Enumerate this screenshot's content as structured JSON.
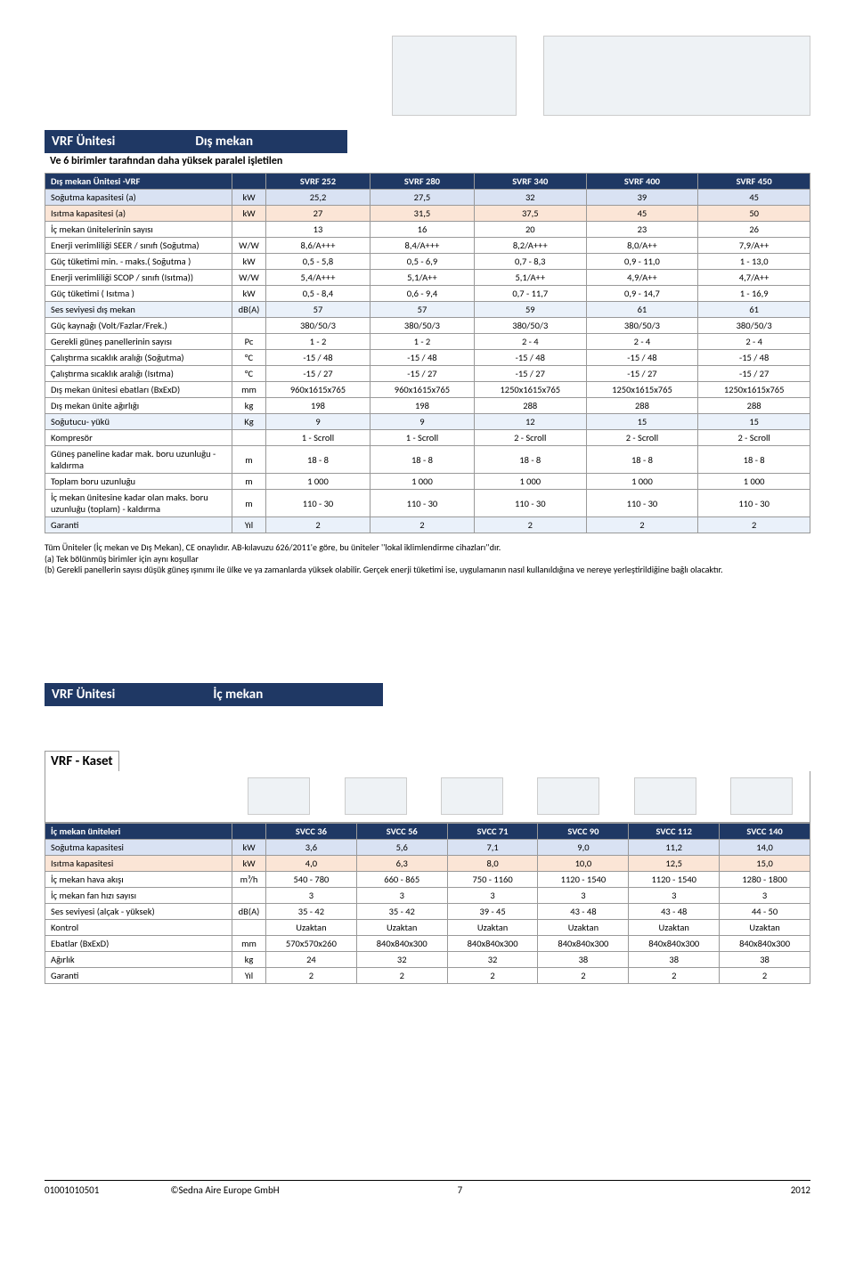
{
  "colors": {
    "navy": "#1f3864",
    "orange_bg": "#fbe5d6",
    "blue_bg": "#d9e2f3",
    "ltblue_bg": "#eaf1fa"
  },
  "section1": {
    "title_left": "VRF Ünitesi",
    "title_right": "Dış mekan",
    "subtitle": "Ve 6 birimler tarafından daha yüksek paralel işletilen",
    "header_label": "Dış mekan Ünitesi -VRF",
    "cols": [
      "SVRF 252",
      "SVRF 280",
      "SVRF 340",
      "SVRF 400",
      "SVRF 450"
    ],
    "rows": [
      {
        "style": "row-blue",
        "label": "Soğutma kapasitesi (a)",
        "unit": "kW",
        "vals": [
          "25,2",
          "27,5",
          "32",
          "39",
          "45"
        ]
      },
      {
        "style": "row-orange",
        "label": "Isıtma kapasitesi (a)",
        "unit": "kW",
        "vals": [
          "27",
          "31,5",
          "37,5",
          "45",
          "50"
        ]
      },
      {
        "style": "",
        "label": "İç mekan ünitelerinin sayısı",
        "unit": "",
        "vals": [
          "13",
          "16",
          "20",
          "23",
          "26"
        ]
      },
      {
        "style": "",
        "label": "Enerji verimliliği SEER / sınıfı (Soğutma)",
        "unit": "W/W",
        "vals": [
          "8,6/A+++",
          "8,4/A+++",
          "8,2/A+++",
          "8,0/A++",
          "7,9/A++"
        ]
      },
      {
        "style": "",
        "label": "Güç tüketimi min. - maks.( Soğutma )",
        "unit": "kW",
        "vals": [
          "0,5 - 5,8",
          "0,5 - 6,9",
          "0,7 - 8,3",
          "0,9 - 11,0",
          "1 - 13,0"
        ]
      },
      {
        "style": "",
        "label": "Enerji verimliliği SCOP / sınıfı (Isıtma))",
        "unit": "W/W",
        "vals": [
          "5,4/A+++",
          "5,1/A++",
          "5,1/A++",
          "4,9/A++",
          "4,7/A++"
        ]
      },
      {
        "style": "",
        "label": "Güç tüketimi ( Isıtma )",
        "unit": "kW",
        "vals": [
          "0,5 - 8,4",
          "0,6 - 9,4",
          "0,7 - 11,7",
          "0,9 - 14,7",
          "1 - 16,9"
        ]
      },
      {
        "style": "row-ltblue",
        "label": "Ses seviyesi dış mekan",
        "unit": "dB(A)",
        "vals": [
          "57",
          "57",
          "59",
          "61",
          "61"
        ]
      },
      {
        "style": "",
        "label": "Güç kaynağı  (Volt/Fazlar/Frek.)",
        "unit": "",
        "vals": [
          "380/50/3",
          "380/50/3",
          "380/50/3",
          "380/50/3",
          "380/50/3"
        ]
      },
      {
        "style": "",
        "label": "Gerekli güneş panellerinin sayısı",
        "unit": "Pc",
        "vals": [
          "1 - 2",
          "1 - 2",
          "2 - 4",
          "2 - 4",
          "2 - 4"
        ]
      },
      {
        "style": "",
        "label": "Çalıştırma sıcaklık aralığı (Soğutma)",
        "unit": "°C",
        "vals": [
          "-15 / 48",
          "-15 / 48",
          "-15 / 48",
          "-15 / 48",
          "-15 / 48"
        ]
      },
      {
        "style": "",
        "label": "Çalıştırma sıcaklık aralığı (Isıtma)",
        "unit": "°C",
        "vals": [
          "-15 / 27",
          "-15 / 27",
          "-15 / 27",
          "-15 / 27",
          "-15 / 27"
        ]
      },
      {
        "style": "",
        "label": "Dış mekan ünitesi ebatları (BxExD)",
        "unit": "mm",
        "vals": [
          "960x1615x765",
          "960x1615x765",
          "1250x1615x765",
          "1250x1615x765",
          "1250x1615x765"
        ]
      },
      {
        "style": "",
        "label": "Dış mekan ünite ağırlığı",
        "unit": "kg",
        "vals": [
          "198",
          "198",
          "288",
          "288",
          "288"
        ]
      },
      {
        "style": "row-ltblue",
        "label": "Soğutucu- yükü",
        "unit": "Kg",
        "vals": [
          "9",
          "9",
          "12",
          "15",
          "15"
        ]
      },
      {
        "style": "",
        "label": "Kompresör",
        "unit": "",
        "vals": [
          "1 - Scroll",
          "1 - Scroll",
          "2 - Scroll",
          "2 - Scroll",
          "2 - Scroll"
        ]
      },
      {
        "style": "",
        "label": "Güneş paneline kadar mak. boru uzunluğu - kaldırma",
        "unit": "m",
        "vals": [
          "18 - 8",
          "18 - 8",
          "18 - 8",
          "18 - 8",
          "18 - 8"
        ]
      },
      {
        "style": "",
        "label": "Toplam boru uzunluğu",
        "unit": "m",
        "vals": [
          "1 000",
          "1 000",
          "1 000",
          "1 000",
          "1 000"
        ]
      },
      {
        "style": "",
        "label": "İç mekan ünitesine kadar olan maks. boru uzunluğu (toplam) - kaldırma",
        "unit": "m",
        "vals": [
          "110 - 30",
          "110 - 30",
          "110 - 30",
          "110 - 30",
          "110 - 30"
        ]
      },
      {
        "style": "row-ltblue",
        "label": "Garanti",
        "unit": "Yıl",
        "vals": [
          "2",
          "2",
          "2",
          "2",
          "2"
        ]
      }
    ],
    "notes_line1": "Tüm Üniteler (İç mekan ve Dış Mekan), CE onaylıdır.  AB-kılavuzu 626/2011'e göre, bu üniteler ''lokal iklimlendirme cihazları''dır.",
    "notes_a": "(a)     Tek bölünmüş birimler için aynı koşullar",
    "notes_b": "(b)     Gerekli panellerin sayısı düşük güneş ışınımı ile ülke ve ya zamanlarda yüksek olabilir. Gerçek enerji tüketimi ise, uygulamanın nasıl kullanıldığına ve nereye yerleştirildiğine bağlı olacaktır."
  },
  "section2": {
    "title_left": "VRF Ünitesi",
    "title_right": "İç mekan",
    "boxtitle": "VRF  - Kaset",
    "header_label": "İç mekan üniteleri",
    "cols": [
      "SVCC 36",
      "SVCC 56",
      "SVCC 71",
      "SVCC 90",
      "SVCC 112",
      "SVCC 140"
    ],
    "rows": [
      {
        "style": "row-blue",
        "label": "Soğutma kapasitesi",
        "unit": "kW",
        "vals": [
          "3,6",
          "5,6",
          "7,1",
          "9,0",
          "11,2",
          "14,0"
        ]
      },
      {
        "style": "row-orange",
        "label": "Isıtma kapasitesi",
        "unit": "kW",
        "vals": [
          "4,0",
          "6,3",
          "8,0",
          "10,0",
          "12,5",
          "15,0"
        ]
      },
      {
        "style": "",
        "label": "İç mekan hava akışı",
        "unit": "m³/h",
        "vals": [
          "540 - 780",
          "660 - 865",
          "750 - 1160",
          "1120 - 1540",
          "1120 - 1540",
          "1280 - 1800"
        ]
      },
      {
        "style": "",
        "label": "İç mekan fan hızı sayısı",
        "unit": "",
        "vals": [
          "3",
          "3",
          "3",
          "3",
          "3",
          "3"
        ]
      },
      {
        "style": "",
        "label": "Ses seviyesi (alçak - yüksek)",
        "unit": "dB(A)",
        "vals": [
          "35 - 42",
          "35 - 42",
          "39 - 45",
          "43 - 48",
          "43 - 48",
          "44 - 50"
        ]
      },
      {
        "style": "",
        "label": "Kontrol",
        "unit": "",
        "vals": [
          "Uzaktan",
          "Uzaktan",
          "Uzaktan",
          "Uzaktan",
          "Uzaktan",
          "Uzaktan"
        ]
      },
      {
        "style": "",
        "label": "Ebatlar (BxExD)",
        "unit": "mm",
        "vals": [
          "570x570x260",
          "840x840x300",
          "840x840x300",
          "840x840x300",
          "840x840x300",
          "840x840x300"
        ]
      },
      {
        "style": "",
        "label": "Ağırlık",
        "unit": "kg",
        "vals": [
          "24",
          "32",
          "32",
          "38",
          "38",
          "38"
        ]
      },
      {
        "style": "",
        "label": "Garanti",
        "unit": "Yıl",
        "vals": [
          "2",
          "2",
          "2",
          "2",
          "2",
          "2"
        ]
      }
    ]
  },
  "footer": [
    "01001010501",
    "©Sedna Aire Europe GmbH",
    "7",
    "2012"
  ]
}
